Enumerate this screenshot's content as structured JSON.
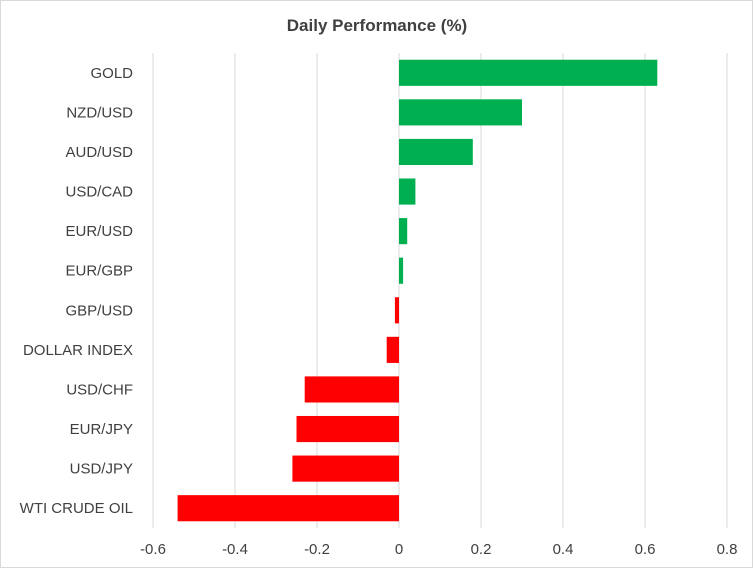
{
  "chart_data": {
    "type": "bar",
    "orientation": "horizontal",
    "title": "Daily Performance (%)",
    "xlabel": "",
    "ylabel": "",
    "categories": [
      "GOLD",
      "NZD/USD",
      "AUD/USD",
      "USD/CAD",
      "EUR/USD",
      "EUR/GBP",
      "GBP/USD",
      "DOLLAR INDEX",
      "USD/CHF",
      "EUR/JPY",
      "USD/JPY",
      "WTI CRUDE OIL"
    ],
    "values": [
      0.63,
      0.3,
      0.18,
      0.04,
      0.02,
      0.01,
      -0.01,
      -0.03,
      -0.23,
      -0.25,
      -0.26,
      -0.54
    ],
    "xlim": [
      -0.6,
      0.8
    ],
    "ticks": [
      -0.6,
      -0.4,
      -0.2,
      0,
      0.2,
      0.4,
      0.6,
      0.8
    ],
    "tick_labels": [
      "-0.6",
      "-0.4",
      "-0.2",
      "0",
      "0.2",
      "0.4",
      "0.6",
      "0.8"
    ],
    "grid": "vertical",
    "legend": "none",
    "colors": {
      "positive": "#00b050",
      "negative": "#ff0000",
      "gridline": "#d9d9d9",
      "text": "#404040"
    }
  }
}
